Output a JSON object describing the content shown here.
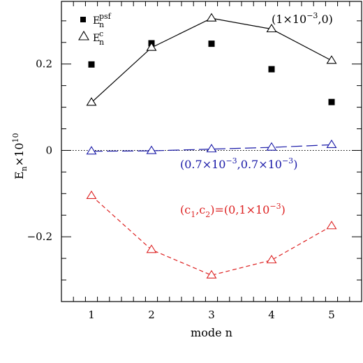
{
  "chart_data": {
    "type": "line",
    "xlabel": "mode n",
    "ylabel": "E",
    "ylabel_sub": "n",
    "ylabel_suffix": "×10",
    "ylabel_exp": "10",
    "xlim": [
      0.5,
      5.5
    ],
    "ylim": [
      -0.35,
      0.345
    ],
    "x_ticks": [
      1,
      2,
      3,
      4,
      5
    ],
    "x_tick_labels": [
      "1",
      "2",
      "3",
      "4",
      "5"
    ],
    "y_ticks": [
      -0.2,
      0,
      0.2
    ],
    "y_tick_labels": [
      "−0.2",
      "0",
      "0.2"
    ],
    "x": [
      1,
      2,
      3,
      4,
      5
    ],
    "zero_line": true,
    "series": [
      {
        "marker": "square",
        "line": "none",
        "color": "#000000",
        "values": [
          0.199,
          0.248,
          0.247,
          0.188,
          0.112
        ]
      },
      {
        "marker": "triangle",
        "line": "solid",
        "color": "#000000",
        "values": [
          0.111,
          0.238,
          0.306,
          0.281,
          0.208
        ]
      },
      {
        "marker": "triangle",
        "line": "longdash",
        "color": "#1a1aa8",
        "values": [
          -0.002,
          -0.001,
          0.003,
          0.007,
          0.013
        ]
      },
      {
        "marker": "triangle",
        "line": "dash",
        "color": "#dd2222",
        "values": [
          -0.105,
          -0.23,
          -0.289,
          -0.254,
          -0.175
        ]
      }
    ],
    "legend": {
      "position": "top-left",
      "entries": [
        {
          "marker": "square",
          "main": "E",
          "sub": "n",
          "sup": "psf"
        },
        {
          "marker": "triangle",
          "main": "E",
          "sub": "n",
          "sup": "c"
        }
      ]
    },
    "annotations": [
      {
        "text": "(1×10",
        "exp": "−3",
        "tail": ",0)",
        "color": "#000000"
      },
      {
        "text": "(0.7×10",
        "exp": "−3",
        "mid": ",0.7×10",
        "exp2": "−3",
        "tail": ")",
        "color": "#1a1aa8"
      },
      {
        "text": "(c",
        "sub1": "1",
        "mid": ",c",
        "sub2": "2",
        "tail2": ")=(0,1×10",
        "exp": "−3",
        "tail": ")",
        "color": "#dd2222"
      }
    ]
  }
}
